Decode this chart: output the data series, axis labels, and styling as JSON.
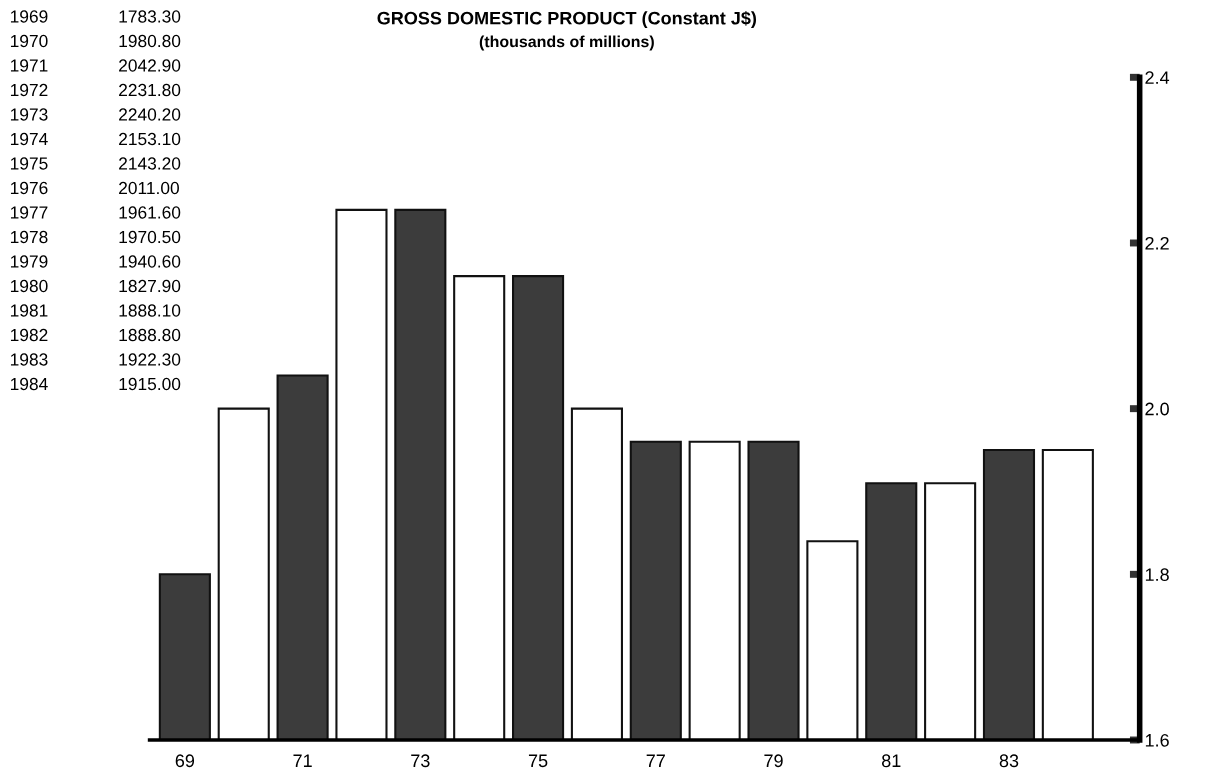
{
  "chart_data": {
    "type": "bar",
    "title": "GROSS DOMESTIC PRODUCT (Constant J$)",
    "subtitle": "(thousands of millions)",
    "categories": [
      "69",
      null,
      "71",
      null,
      "73",
      null,
      "75",
      null,
      "77",
      null,
      "79",
      null,
      "81",
      null,
      "83",
      null
    ],
    "values": [
      1.8,
      2.0,
      2.04,
      2.24,
      2.24,
      2.16,
      2.16,
      2.0,
      1.96,
      1.96,
      1.96,
      1.84,
      1.91,
      1.91,
      1.95,
      1.95
    ],
    "annotations": [
      "1969",
      "1783.30",
      "1970",
      "1980.80",
      "1971",
      "2042.90",
      "1972",
      "2231.80",
      "1973",
      "2240.20",
      "1974",
      "2153.10",
      "1975",
      "2143.20",
      "1976",
      "2011.00",
      "1977",
      "1961.60",
      "1978",
      "1970.50",
      "1979",
      "1940.60",
      "1980",
      "1827.90",
      "1981",
      "1888.10",
      "1982",
      "1888.80",
      "1983",
      "1922.30",
      "1984",
      "1915.00"
    ],
    "colors": [
      "#3c3c3c",
      "#ffffff",
      "#3c3c3c",
      "#ffffff",
      "#3c3c3c",
      "#ffffff",
      "#3c3c3c",
      "#ffffff",
      "#3c3c3c",
      "#ffffff",
      "#3c3c3c",
      "#ffffff",
      "#3c3c3c",
      "#ffffff",
      "#3c3c3c",
      "#ffffff"
    ],
    "ylim": [
      1.6,
      2.4
    ],
    "yticks": [
      1.6,
      1.8,
      {
        "value": 2.0,
        "label": "2.0"
      },
      2.2,
      2.4
    ],
    "grid": false,
    "legend": false
  }
}
